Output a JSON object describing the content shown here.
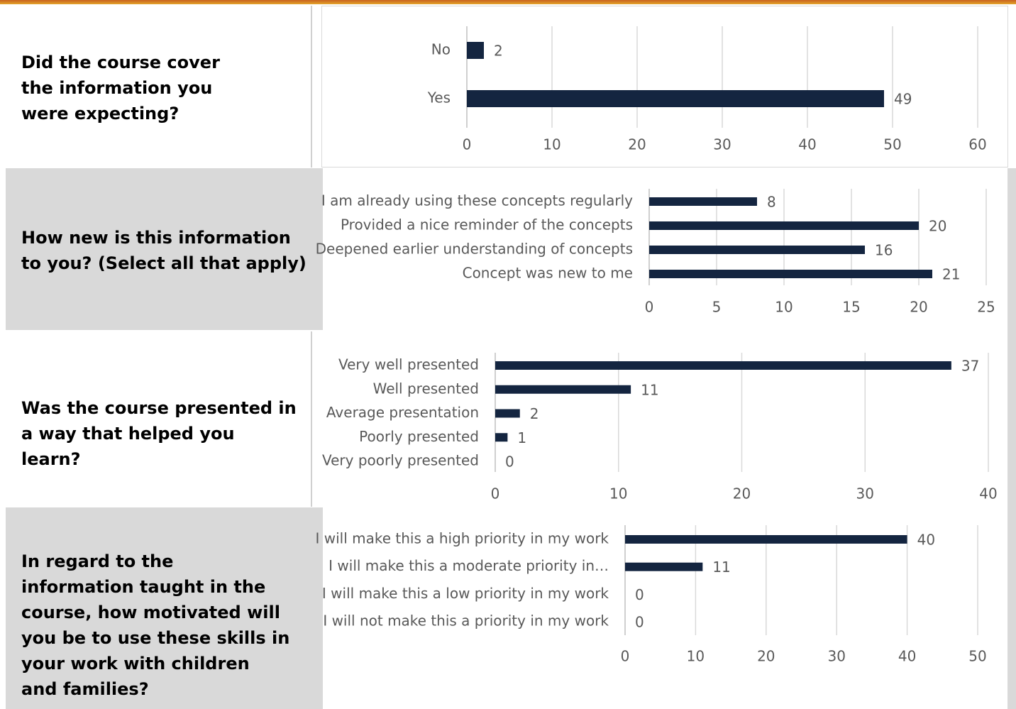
{
  "questions": [
    "Did the course cover the information you were expecting?",
    "How new is this information to you? (Select all that apply)",
    "Was the course presented in a way that helped you learn?",
    "In regard to the information taught in the course, how motivated will you be to use these skills in your work with children and families?"
  ],
  "chart_data": [
    {
      "type": "hbar",
      "categories": [
        "No",
        "Yes"
      ],
      "values": [
        2,
        49
      ],
      "color": "#142540",
      "xlim": [
        0,
        60
      ],
      "xticks": [
        0,
        10,
        20,
        30,
        40,
        50,
        60
      ],
      "grid": true
    },
    {
      "type": "hbar",
      "categories": [
        "I am already using these concepts regularly",
        "Provided a nice reminder of the concepts",
        "Deepened earlier understanding of concepts",
        "Concept was new to me"
      ],
      "values": [
        8,
        20,
        16,
        21
      ],
      "color": "#142540",
      "xlim": [
        0,
        25
      ],
      "xticks": [
        0,
        5,
        10,
        15,
        20,
        25
      ],
      "grid": true
    },
    {
      "type": "hbar",
      "categories": [
        "Very well presented",
        "Well presented",
        "Average presentation",
        "Poorly presented",
        "Very poorly presented"
      ],
      "values": [
        37,
        11,
        2,
        1,
        0
      ],
      "color": "#142540",
      "xlim": [
        0,
        40
      ],
      "xticks": [
        0,
        10,
        20,
        30,
        40
      ],
      "grid": true
    },
    {
      "type": "hbar",
      "categories": [
        "I will make this a high priority in my work",
        "I will make this a moderate priority in…",
        "I will make this a low priority in my work",
        "I will not make this a priority in my work"
      ],
      "values": [
        40,
        11,
        0,
        0
      ],
      "color": "#142540",
      "xlim": [
        0,
        50
      ],
      "xticks": [
        0,
        10,
        20,
        30,
        40,
        50
      ],
      "grid": true
    }
  ]
}
